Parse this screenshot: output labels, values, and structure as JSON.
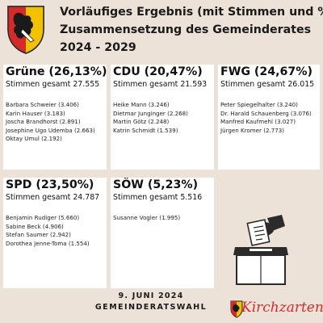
{
  "header": {
    "title_line1": "Vorläufiges Ergebnis (mit Stimmen und %)",
    "title_line2": "Zusammensetzung des Gemeinderates",
    "title_line3": "2024 - 2029"
  },
  "colors": {
    "background": "#ece2d8",
    "card": "#ffffff",
    "brand_red": "#d62a2a",
    "crest_yellow": "#f2c200"
  },
  "parties": [
    {
      "heading": "Grüne (26,13%)",
      "total": "Stimmen gesamt  27.555",
      "candidates": [
        "Barbara Schweier (3.406)",
        "Karin Hauser (3.183)",
        "Joscha Brandhorst (2.891)",
        "Josephine Ugo Udemba (2.663)",
        "Oktay Umul (2.192)"
      ]
    },
    {
      "heading": "CDU (20,47%)",
      "total": "Stimmen gesamt 21.593",
      "candidates": [
        "Heike Mann (3.246)",
        "Dietmar Junginger (2.268)",
        "Martin Götz (2.248)",
        "Katrin Schmidt (1.539)"
      ]
    },
    {
      "heading": "FWG (24,67%)",
      "total": "Stimmen gesamt 26.015",
      "candidates": [
        "Peter Spiegelhalter (3.240)",
        "Dr. Harald Schauenberg (3.076)",
        "Manfred Kaufmehl (3.027)",
        "Jürgen Kromer (2.773)"
      ]
    },
    {
      "heading": "SPD (23,50%)",
      "total": "Stimmen gesamt 24.787",
      "candidates": [
        "Benjamin Rudiger (5.660)",
        "Sabine Beck (4.906)",
        "Stefan Saumer (2.942)",
        "Dorothea Jenne-Toma (1.554)"
      ]
    },
    {
      "heading": "SÖW (5,23%)",
      "total": "Stimmen gesamt 5.516",
      "candidates": [
        "Susanne Vogler (1.995)"
      ]
    }
  ],
  "footer": {
    "date": "9. JUNI 2024",
    "election": "GEMEINDERATSWAHL",
    "logo_text": "Kirchzarten"
  },
  "icons": {
    "crest": "coat-of-arms-icon",
    "ballot": "ballot-box-icon",
    "logo": "kirchzarten-logo-icon"
  }
}
